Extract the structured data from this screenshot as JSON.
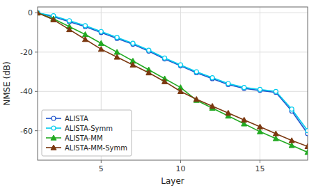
{
  "chart_data": {
    "type": "line",
    "xlabel": "Layer",
    "ylabel": "NMSE (dB)",
    "x": [
      1,
      2,
      3,
      4,
      5,
      6,
      7,
      8,
      9,
      10,
      11,
      12,
      13,
      14,
      15,
      16,
      17,
      18
    ],
    "xlim": [
      1,
      18
    ],
    "ylim": [
      -75,
      3
    ],
    "xticks": [
      5,
      10,
      15
    ],
    "yticks": [
      0,
      -20,
      -40,
      -60
    ],
    "grid": true,
    "legend": "lower left",
    "series": [
      {
        "name": "ALISTA",
        "color": "#1f55cc",
        "marker": "circle",
        "values": [
          0.0,
          -2.0,
          -4.5,
          -7.0,
          -10.0,
          -13.0,
          -16.0,
          -19.5,
          -23.5,
          -27.0,
          -30.5,
          -33.5,
          -36.5,
          -38.5,
          -39.5,
          -40.5,
          -50.0,
          -61.5
        ]
      },
      {
        "name": "ALISTA-Symm",
        "color": "#00ccee",
        "marker": "circle",
        "values": [
          0.0,
          -1.5,
          -4.0,
          -6.5,
          -9.5,
          -12.5,
          -15.5,
          -19.0,
          -23.0,
          -26.5,
          -30.0,
          -33.0,
          -36.0,
          -38.0,
          -39.0,
          -40.0,
          -49.0,
          -60.0
        ]
      },
      {
        "name": "ALISTA-MM",
        "color": "#22aa22",
        "marker": "triangle",
        "values": [
          0.0,
          -3.0,
          -7.0,
          -11.0,
          -15.5,
          -20.0,
          -24.5,
          -29.0,
          -33.5,
          -38.0,
          -44.5,
          -48.5,
          -52.5,
          -56.5,
          -60.5,
          -64.0,
          -67.5,
          -71.0
        ]
      },
      {
        "name": "ALISTA-MM-Symm",
        "color": "#7B3810",
        "marker": "triangle",
        "values": [
          0.0,
          -3.5,
          -8.5,
          -13.5,
          -18.5,
          -22.5,
          -26.5,
          -30.5,
          -35.0,
          -40.0,
          -44.0,
          -47.5,
          -51.0,
          -54.5,
          -58.0,
          -61.5,
          -65.0,
          -68.0
        ]
      }
    ]
  }
}
